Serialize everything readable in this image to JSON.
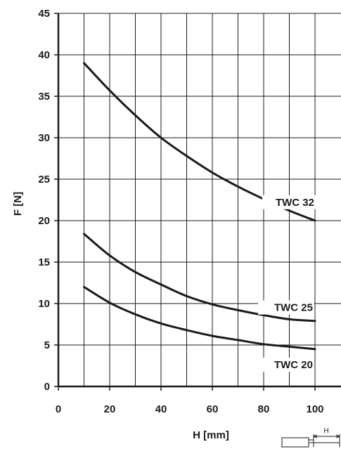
{
  "chart_data": {
    "type": "line",
    "xlabel": "H [mm]",
    "ylabel": "F [N]",
    "xlim": [
      0,
      100
    ],
    "ylim": [
      0,
      45
    ],
    "xticks": [
      0,
      20,
      40,
      60,
      80,
      100
    ],
    "yticks": [
      0,
      5,
      10,
      15,
      20,
      25,
      30,
      35,
      40,
      45
    ],
    "grid": true,
    "series": [
      {
        "name": "TWC 32",
        "x": [
          10,
          20,
          30,
          40,
          50,
          60,
          70,
          80,
          90,
          100
        ],
        "y": [
          39,
          35.7,
          32.7,
          30,
          27.8,
          25.8,
          24.1,
          22.6,
          21.2,
          20
        ]
      },
      {
        "name": "TWC 25",
        "x": [
          10,
          20,
          30,
          40,
          50,
          60,
          70,
          80,
          90,
          100
        ],
        "y": [
          18.4,
          15.8,
          13.8,
          12.3,
          10.9,
          9.9,
          9.2,
          8.6,
          8.1,
          7.9
        ]
      },
      {
        "name": "TWC 20",
        "x": [
          10,
          20,
          30,
          40,
          50,
          60,
          70,
          80,
          90,
          100
        ],
        "y": [
          12,
          10.1,
          8.7,
          7.6,
          6.8,
          6.1,
          5.6,
          5.1,
          4.8,
          4.5
        ]
      }
    ]
  },
  "diagram": {
    "dimension_label": "H"
  }
}
